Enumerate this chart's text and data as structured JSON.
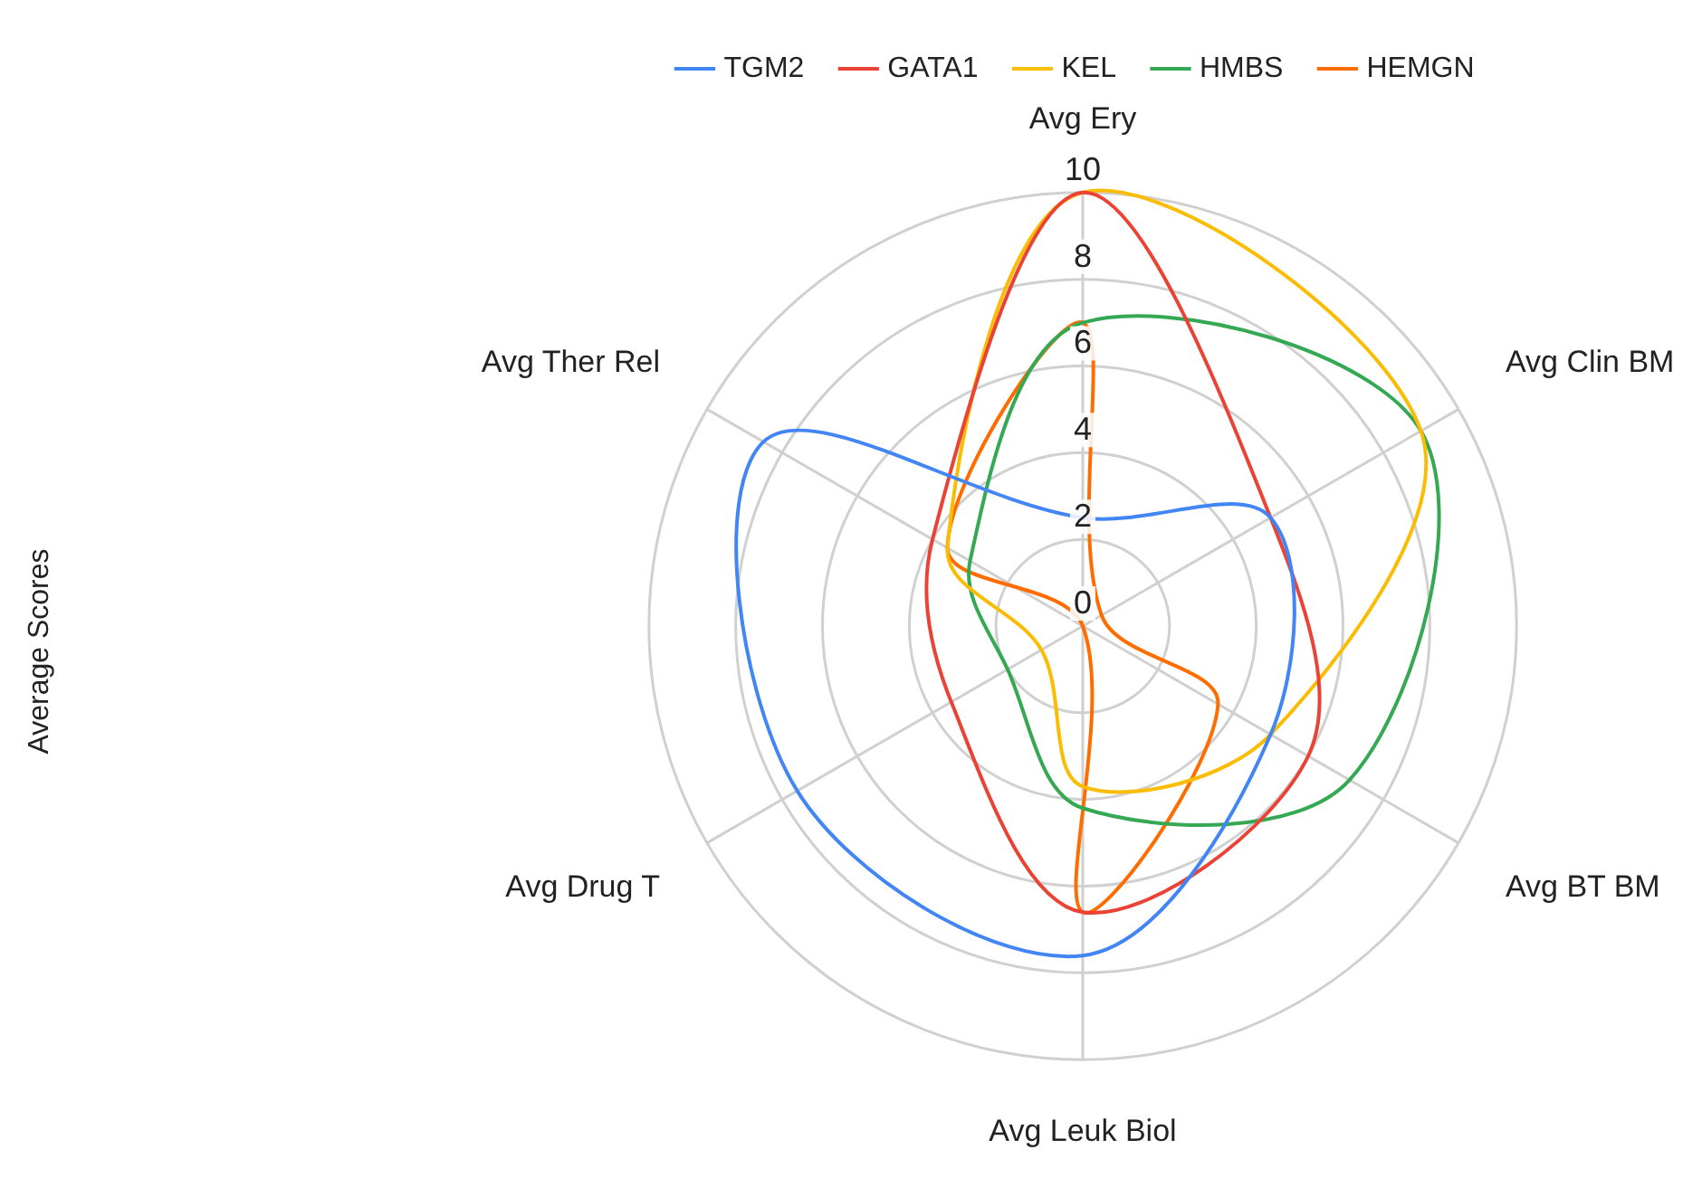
{
  "chart_data": {
    "type": "radar",
    "ylabel": "Average Scores",
    "categories": [
      "Avg Ery",
      "Avg Clin BM",
      "Avg BT BM",
      "Avg Leuk Biol",
      "Avg Drug T",
      "Avg Ther Rel"
    ],
    "series": [
      {
        "name": "TGM2",
        "color": "#4285f4",
        "values": [
          2.5,
          5.0,
          5.0,
          7.6,
          7.6,
          8.5
        ]
      },
      {
        "name": "GATA1",
        "color": "#ea4335",
        "values": [
          10,
          5.0,
          6.0,
          6.6,
          3.5,
          4.0
        ]
      },
      {
        "name": "KEL",
        "color": "#fbbc04",
        "values": [
          10,
          9.0,
          5.0,
          3.7,
          1.1,
          3.6
        ]
      },
      {
        "name": "HMBS",
        "color": "#34a853",
        "values": [
          7.0,
          9.0,
          7.1,
          4.2,
          2.0,
          3.0
        ]
      },
      {
        "name": "HEMGN",
        "color": "#ff6d01",
        "values": [
          7.0,
          0.5,
          3.6,
          6.6,
          0,
          3.6
        ]
      }
    ],
    "ylim": [
      0,
      10
    ],
    "yticks": [
      0,
      2,
      4,
      6,
      8,
      10
    ],
    "grid": true,
    "legend": "top",
    "marker": "none",
    "line_style": "solid"
  }
}
